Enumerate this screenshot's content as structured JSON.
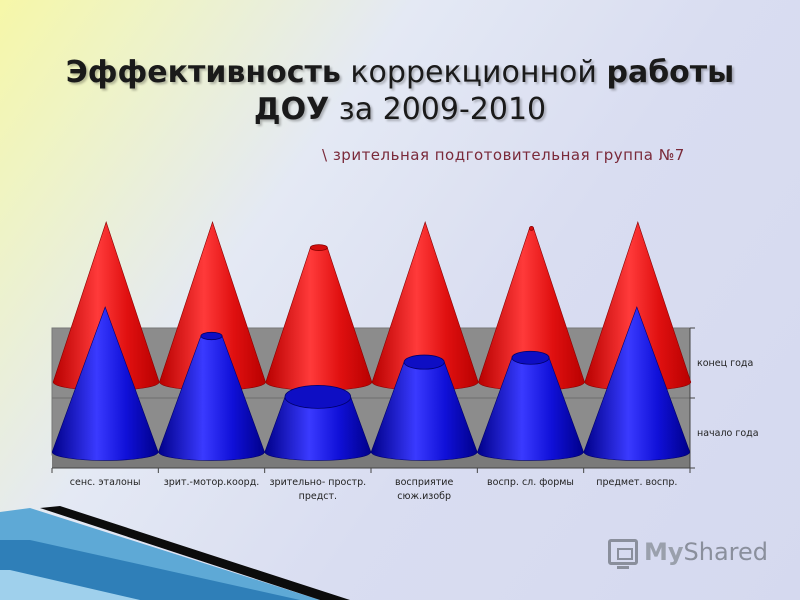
{
  "header": {
    "title_line1_bold_a": "Эффективность",
    "title_line1_normal": "коррекционной",
    "title_line1_bold_b": "работы",
    "title_line2_bold": "ДОУ",
    "title_line2_normal": "за 2009-2010",
    "subtitle": "\\ зрительная подготовительная группа №7"
  },
  "chart_data": {
    "type": "bar",
    "shape": "cone",
    "categories": [
      [
        "сенс. эталоны"
      ],
      [
        "зрит.-мотор.коорд."
      ],
      [
        "зрительно- простр.",
        "предст."
      ],
      [
        "восприятие",
        "сюж.изобр"
      ],
      [
        "воспр. сл. формы"
      ],
      [
        "предмет. воспр."
      ]
    ],
    "series": [
      {
        "name": "начало года",
        "values": [
          1.0,
          0.8,
          0.38,
          0.62,
          0.65,
          1.0
        ],
        "color": "#1414e6"
      },
      {
        "name": "конец года",
        "values": [
          1.0,
          1.0,
          0.84,
          1.0,
          0.96,
          1.0
        ],
        "color": "#e60f0f"
      }
    ],
    "legend": "right",
    "grid": true
  },
  "watermark": {
    "icon": "presentation-board-icon",
    "text_a": "My",
    "text_b": "Shared"
  }
}
